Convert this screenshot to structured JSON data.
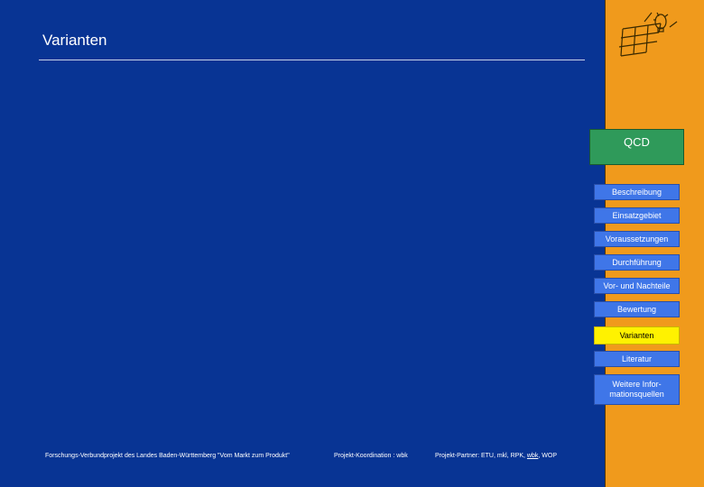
{
  "page": {
    "title": "Varianten"
  },
  "sidebar": {
    "qcd_label": "QCD",
    "items": [
      {
        "label": "Beschreibung",
        "active": false
      },
      {
        "label": "Einsatzgebiet",
        "active": false
      },
      {
        "label": "Voraussetzungen",
        "active": false
      },
      {
        "label": "Durchführung",
        "active": false
      },
      {
        "label": "Vor- und Nachteile",
        "active": false
      },
      {
        "label": "Bewertung",
        "active": false
      },
      {
        "label": "Varianten",
        "active": true
      },
      {
        "label": "Literatur",
        "active": false
      },
      {
        "label": "Weitere Infor-\nmationsquellen",
        "active": false
      }
    ],
    "logo_icon": "grid-lightbulb-logo-icon",
    "active_color": "#fff200",
    "button_color": "#3f76e8"
  },
  "footer": {
    "project": "Forschungs-Verbundprojekt des Landes Baden-Württemberg \"Vom Markt zum Produkt\"",
    "coordination": "Projekt-Koordination : wbk",
    "partners_prefix": "Projekt-Partner: ETU, mkl, RPK, ",
    "partners_link": "wbk",
    "partners_suffix": ", WOP"
  }
}
